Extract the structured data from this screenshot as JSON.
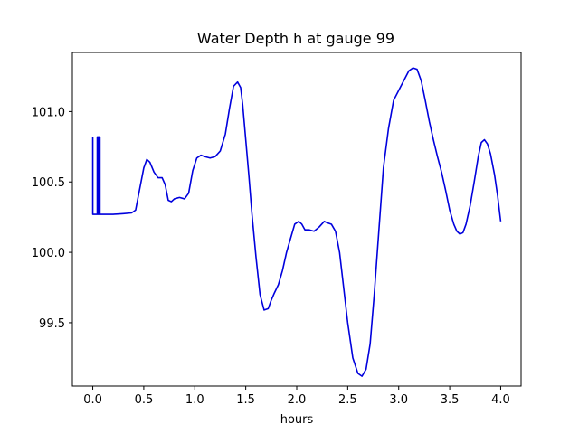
{
  "chart_data": {
    "type": "line",
    "title": "Water Depth h at gauge 99",
    "xlabel": "hours",
    "ylabel": "",
    "xlim": [
      -0.2,
      4.2
    ],
    "ylim": [
      99.05,
      101.42
    ],
    "x_ticks": [
      0.0,
      0.5,
      1.0,
      1.5,
      2.0,
      2.5,
      3.0,
      3.5,
      4.0
    ],
    "x_tick_labels": [
      "0.0",
      "0.5",
      "1.0",
      "1.5",
      "2.0",
      "2.5",
      "3.0",
      "3.5",
      "4.0"
    ],
    "y_ticks": [
      99.5,
      100.0,
      100.5,
      101.0
    ],
    "y_tick_labels": [
      "99.5",
      "100.0",
      "100.5",
      "101.0"
    ],
    "grid": false,
    "legend": "none",
    "series": [
      {
        "color": "#0000dd",
        "x": [
          0.0,
          0.0,
          0.003,
          0.003,
          0.044,
          0.044,
          0.05,
          0.05,
          0.055,
          0.055,
          0.06,
          0.06,
          0.065,
          0.065,
          0.07,
          0.07,
          0.1,
          0.2,
          0.3,
          0.38,
          0.42,
          0.46,
          0.5,
          0.53,
          0.56,
          0.6,
          0.64,
          0.68,
          0.71,
          0.74,
          0.77,
          0.8,
          0.85,
          0.9,
          0.94,
          0.98,
          1.02,
          1.06,
          1.1,
          1.15,
          1.2,
          1.25,
          1.3,
          1.34,
          1.38,
          1.42,
          1.45,
          1.47,
          1.5,
          1.53,
          1.56,
          1.6,
          1.64,
          1.68,
          1.72,
          1.75,
          1.78,
          1.82,
          1.86,
          1.9,
          1.94,
          1.98,
          2.02,
          2.05,
          2.08,
          2.12,
          2.17,
          2.22,
          2.27,
          2.3,
          2.34,
          2.38,
          2.42,
          2.46,
          2.5,
          2.55,
          2.6,
          2.64,
          2.68,
          2.72,
          2.76,
          2.8,
          2.85,
          2.9,
          2.95,
          3.0,
          3.05,
          3.1,
          3.14,
          3.18,
          3.22,
          3.26,
          3.3,
          3.34,
          3.38,
          3.42,
          3.46,
          3.5,
          3.54,
          3.57,
          3.6,
          3.63,
          3.66,
          3.7,
          3.74,
          3.78,
          3.81,
          3.84,
          3.87,
          3.9,
          3.94,
          3.97,
          4.0
        ],
        "y": [
          100.82,
          100.27,
          100.27,
          100.27,
          100.27,
          100.82,
          100.82,
          100.27,
          100.27,
          100.82,
          100.82,
          100.27,
          100.27,
          100.82,
          100.82,
          100.27,
          100.27,
          100.27,
          100.275,
          100.28,
          100.3,
          100.45,
          100.6,
          100.66,
          100.64,
          100.57,
          100.53,
          100.53,
          100.48,
          100.37,
          100.36,
          100.38,
          100.39,
          100.38,
          100.42,
          100.58,
          100.67,
          100.69,
          100.68,
          100.67,
          100.68,
          100.72,
          100.84,
          101.02,
          101.18,
          101.21,
          101.17,
          101.05,
          100.8,
          100.55,
          100.28,
          99.97,
          99.7,
          99.59,
          99.6,
          99.66,
          99.71,
          99.77,
          99.87,
          100.0,
          100.1,
          100.2,
          100.22,
          100.2,
          100.16,
          100.16,
          100.15,
          100.18,
          100.22,
          100.21,
          100.2,
          100.15,
          100.0,
          99.75,
          99.5,
          99.25,
          99.14,
          99.12,
          99.17,
          99.35,
          99.7,
          100.1,
          100.6,
          100.88,
          101.08,
          101.15,
          101.22,
          101.29,
          101.31,
          101.3,
          101.22,
          101.08,
          100.93,
          100.8,
          100.68,
          100.57,
          100.44,
          100.3,
          100.2,
          100.15,
          100.13,
          100.14,
          100.2,
          100.33,
          100.5,
          100.68,
          100.78,
          100.8,
          100.77,
          100.7,
          100.55,
          100.4,
          100.22
        ]
      }
    ]
  }
}
